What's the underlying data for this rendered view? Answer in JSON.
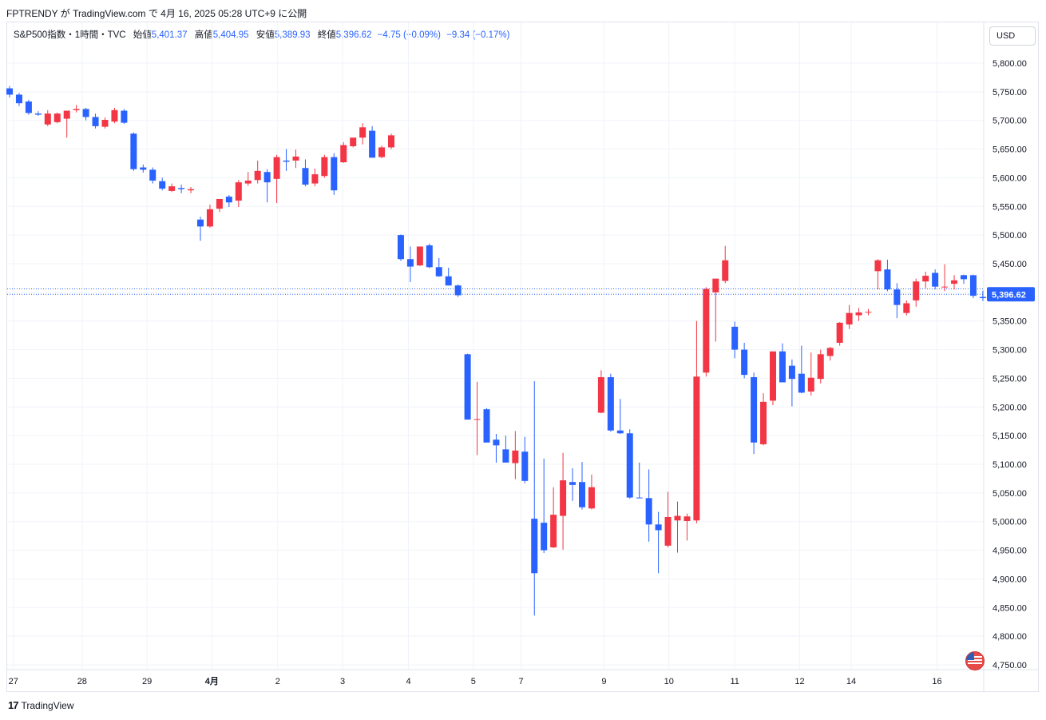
{
  "header": {
    "publish_line": "FPTRENDY が TradingView.com で 4月 16, 2025 05:28 UTC+9 に公開"
  },
  "legend": {
    "symbol": "S&P500指数・1時間・TVC",
    "open_label": "始値",
    "open": "5,401.37",
    "high_label": "高値",
    "high": "5,404.95",
    "low_label": "安値",
    "low": "5,389.93",
    "close_label": "終値",
    "close": "5,396.62",
    "change": "−4.75 (−0.09%)",
    "change2": "−9.34 (−0.17%)"
  },
  "currency_button": "USD",
  "footer": {
    "brand": "TradingView",
    "logo": "17"
  },
  "colors": {
    "up": "#f23645",
    "down": "#2962ff",
    "grid": "#f0f3fa",
    "price_label_bg": "#2962ff"
  },
  "icons": {
    "flag": "us-flag-icon"
  },
  "chart_data": {
    "type": "candlestick",
    "title": "",
    "ylim": [
      4725,
      5850
    ],
    "y_ticks": [
      4750,
      4800,
      4850,
      4900,
      4950,
      5000,
      5050,
      5100,
      5150,
      5200,
      5250,
      5300,
      5350,
      5400,
      5450,
      5500,
      5550,
      5600,
      5650,
      5700,
      5750,
      5800
    ],
    "y_tick_labels": [
      "4,750.00",
      "4,800.00",
      "4,850.00",
      "4,900.00",
      "4,950.00",
      "5,000.00",
      "5,050.00",
      "5,100.00",
      "5,150.00",
      "5,200.00",
      "5,250.00",
      "5,300.00",
      "5,350.00",
      "5,400.00",
      "5,450.00",
      "5,500.00",
      "5,550.00",
      "5,600.00",
      "5,650.00",
      "5,700.00",
      "5,750.00",
      "5,800.00"
    ],
    "x_ticks": [
      {
        "bar": 0.4,
        "label": "27"
      },
      {
        "bar": 7.6,
        "label": "28"
      },
      {
        "bar": 14.4,
        "label": "29"
      },
      {
        "bar": 21.2,
        "label": "4月"
      },
      {
        "bar": 28.1,
        "label": "2"
      },
      {
        "bar": 34.9,
        "label": "3"
      },
      {
        "bar": 41.8,
        "label": "4"
      },
      {
        "bar": 48.6,
        "label": "5"
      },
      {
        "bar": 53.6,
        "label": "7"
      },
      {
        "bar": 62.3,
        "label": "9"
      },
      {
        "bar": 69.1,
        "label": "10"
      },
      {
        "bar": 76.0,
        "label": "11"
      },
      {
        "bar": 82.8,
        "label": "12"
      },
      {
        "bar": 88.2,
        "label": "14"
      },
      {
        "bar": 97.2,
        "label": "16"
      }
    ],
    "last_price": 5396.62,
    "last_price_label": "5,396.62",
    "prev_close_line": 5406,
    "candles": [
      [
        5756,
        5760,
        5740,
        5745
      ],
      [
        5745,
        5748,
        5725,
        5730
      ],
      [
        5733,
        5736,
        5710,
        5713
      ],
      [
        5712,
        5716,
        5708,
        5710
      ],
      [
        5693,
        5718,
        5690,
        5712
      ],
      [
        5697,
        5714,
        5695,
        5712
      ],
      [
        5703,
        5712,
        5670,
        5717
      ],
      [
        5718,
        5727,
        5714,
        5720
      ],
      [
        5720,
        5722,
        5700,
        5706
      ],
      [
        5706,
        5712,
        5686,
        5690
      ],
      [
        5689,
        5705,
        5686,
        5701
      ],
      [
        5698,
        5722,
        5695,
        5718
      ],
      [
        5717,
        5720,
        5694,
        5696
      ],
      [
        5677,
        5679,
        5612,
        5615
      ],
      [
        5618,
        5623,
        5609,
        5614
      ],
      [
        5614,
        5618,
        5590,
        5595
      ],
      [
        5594,
        5600,
        5578,
        5581
      ],
      [
        5577,
        5590,
        5575,
        5585
      ],
      [
        5582,
        5588,
        5573,
        5580
      ],
      [
        5578,
        5584,
        5573,
        5580
      ],
      [
        5527,
        5532,
        5490,
        5515
      ],
      [
        5515,
        5553,
        5513,
        5545
      ],
      [
        5546,
        5562,
        5540,
        5563
      ],
      [
        5567,
        5570,
        5549,
        5557
      ],
      [
        5560,
        5596,
        5549,
        5592
      ],
      [
        5590,
        5610,
        5586,
        5595
      ],
      [
        5596,
        5630,
        5590,
        5612
      ],
      [
        5610,
        5615,
        5557,
        5592
      ],
      [
        5598,
        5640,
        5556,
        5636
      ],
      [
        5630,
        5650,
        5612,
        5628
      ],
      [
        5630,
        5649,
        5617,
        5637
      ],
      [
        5617,
        5632,
        5585,
        5588
      ],
      [
        5590,
        5616,
        5585,
        5606
      ],
      [
        5603,
        5640,
        5600,
        5636
      ],
      [
        5636,
        5643,
        5570,
        5578
      ],
      [
        5627,
        5662,
        5626,
        5657
      ],
      [
        5655,
        5670,
        5653,
        5670
      ],
      [
        5670,
        5695,
        5658,
        5688
      ],
      [
        5682,
        5690,
        5635,
        5635
      ],
      [
        5636,
        5656,
        5634,
        5653
      ],
      [
        5653,
        5677,
        5650,
        5674
      ],
      [
        5500,
        5501,
        5455,
        5458
      ],
      [
        5458,
        5480,
        5418,
        5445
      ],
      [
        5447,
        5480,
        5446,
        5480
      ],
      [
        5482,
        5485,
        5442,
        5444
      ],
      [
        5444,
        5460,
        5427,
        5428
      ],
      [
        5428,
        5443,
        5412,
        5412
      ],
      [
        5412,
        5414,
        5392,
        5395
      ],
      [
        5292,
        5293,
        5178,
        5178
      ],
      [
        5179,
        5244,
        5116,
        5179
      ],
      [
        5196,
        5198,
        5138,
        5138
      ],
      [
        5143,
        5153,
        5103,
        5133
      ],
      [
        5126,
        5150,
        5106,
        5103
      ],
      [
        5102,
        5158,
        5074,
        5124
      ],
      [
        5122,
        5148,
        5067,
        5071
      ],
      [
        5005,
        5245,
        4836,
        4910
      ],
      [
        4998,
        5110,
        4945,
        4950
      ],
      [
        4955,
        5060,
        4954,
        5012
      ],
      [
        5010,
        5120,
        4951,
        5072
      ],
      [
        5069,
        5093,
        5036,
        5064
      ],
      [
        5069,
        5104,
        5021,
        5025
      ],
      [
        5023,
        5082,
        5021,
        5060
      ],
      [
        5190,
        5264,
        5189,
        5252
      ],
      [
        5252,
        5258,
        5157,
        5159
      ],
      [
        5159,
        5214,
        5153,
        5154
      ],
      [
        5154,
        5161,
        5040,
        5042
      ],
      [
        5042,
        5103,
        5041,
        5041
      ],
      [
        5041,
        5091,
        4965,
        4995
      ],
      [
        4995,
        5017,
        4910,
        4985
      ],
      [
        4958,
        5052,
        4955,
        5008
      ],
      [
        5002,
        5035,
        4946,
        5010
      ],
      [
        5001,
        5014,
        4967,
        5009
      ],
      [
        5002,
        5350,
        4997,
        5253
      ],
      [
        5260,
        5409,
        5253,
        5406
      ],
      [
        5400,
        5423,
        5314,
        5424
      ],
      [
        5420,
        5481,
        5416,
        5456
      ],
      [
        5340,
        5349,
        5285,
        5300
      ],
      [
        5300,
        5312,
        5250,
        5256
      ],
      [
        5252,
        5260,
        5118,
        5138
      ],
      [
        5135,
        5224,
        5133,
        5209
      ],
      [
        5211,
        5292,
        5203,
        5297
      ],
      [
        5297,
        5311,
        5244,
        5243
      ],
      [
        5272,
        5283,
        5201,
        5249
      ],
      [
        5258,
        5307,
        5224,
        5225
      ],
      [
        5227,
        5295,
        5220,
        5251
      ],
      [
        5249,
        5300,
        5241,
        5292
      ],
      [
        5289,
        5305,
        5281,
        5303
      ],
      [
        5312,
        5348,
        5307,
        5347
      ],
      [
        5344,
        5378,
        5336,
        5364
      ],
      [
        5360,
        5373,
        5350,
        5365
      ],
      [
        5366,
        5371,
        5360,
        5366
      ],
      [
        5437,
        5458,
        5405,
        5456
      ],
      [
        5440,
        5457,
        5402,
        5405
      ],
      [
        5405,
        5416,
        5355,
        5378
      ],
      [
        5364,
        5386,
        5360,
        5381
      ],
      [
        5386,
        5424,
        5375,
        5419
      ],
      [
        5419,
        5436,
        5407,
        5429
      ],
      [
        5434,
        5440,
        5405,
        5410
      ],
      [
        5410,
        5449,
        5402,
        5410
      ],
      [
        5415,
        5430,
        5405,
        5421
      ],
      [
        5430,
        5431,
        5415,
        5423
      ],
      [
        5430,
        5431,
        5390,
        5394
      ],
      [
        5392,
        5403,
        5385,
        5390
      ],
      [
        5392,
        5404,
        5391,
        5400
      ],
      [
        5401,
        5405,
        5390,
        5397
      ]
    ]
  }
}
